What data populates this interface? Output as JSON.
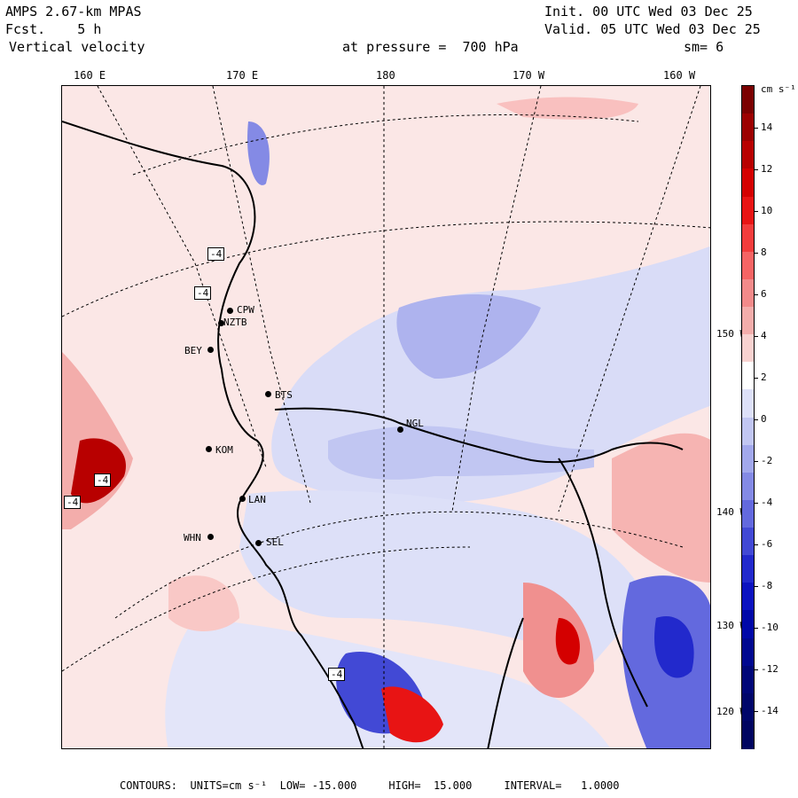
{
  "header": {
    "model": "AMPS 2.67-km MPAS",
    "forecast": "Fcst.    5 h",
    "variable": "Vertical velocity",
    "init": "Init. 00 UTC Wed 03 Dec 25",
    "valid": "Valid. 05 UTC Wed 03 Dec 25",
    "pressure": "at pressure =  700 hPa",
    "smoothing": "sm= 6"
  },
  "map": {
    "lon_labels": [
      "160 E",
      "170 E",
      "180",
      "170 W",
      "160 W"
    ],
    "lat_labels": [
      "150 W",
      "140 W",
      "130 W",
      "120 W"
    ],
    "stations": [
      "CPW",
      "NZTB",
      "BEY",
      "BTS",
      "NGL",
      "KOM",
      "LAN",
      "WHN",
      "SEL"
    ],
    "contour_labels": [
      "-4",
      "-4",
      "-4",
      "-4",
      "-4"
    ],
    "colors": {
      "positive_light": "#f9d6d5",
      "negative_light": "#d9dcf7",
      "negative_mid": "#aeb3ee",
      "positive_mid": "#ef9c9c"
    }
  },
  "colorbar": {
    "unit": "cm s⁻¹",
    "ticks": [
      "14",
      "12",
      "10",
      "8",
      "6",
      "4",
      "2",
      "0",
      "-2",
      "-4",
      "-6",
      "-8",
      "-10",
      "-12",
      "-14"
    ],
    "colors": [
      "#7b0000",
      "#9c0000",
      "#b80000",
      "#d40000",
      "#e81414",
      "#f23c3c",
      "#f56464",
      "#f28a8a",
      "#f3adab",
      "#f8d2d0",
      "#ffffff",
      "#dde0f8",
      "#c1c6f2",
      "#a2a8ec",
      "#848ae5",
      "#6369de",
      "#4249d5",
      "#2229cc",
      "#0c12c0",
      "#0008a8",
      "#000890",
      "#000778",
      "#00066a",
      "#000560"
    ]
  },
  "footer": {
    "text": "CONTOURS:  UNITS=cm s⁻¹  LOW= -15.000     HIGH=  15.000     INTERVAL=   1.0000"
  }
}
